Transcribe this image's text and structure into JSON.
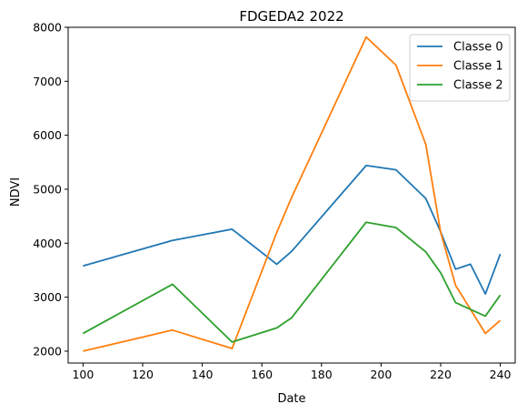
{
  "chart_data": {
    "type": "line",
    "title": "FDGEDA2 2022",
    "xlabel": "Date",
    "ylabel": "NDVI",
    "xlim": [
      95,
      245
    ],
    "ylim": [
      1780,
      8000
    ],
    "xticks": [
      100,
      120,
      140,
      160,
      180,
      200,
      220,
      240
    ],
    "yticks": [
      2000,
      3000,
      4000,
      5000,
      6000,
      7000,
      8000
    ],
    "grid": false,
    "legend_position": "top-right",
    "series": [
      {
        "name": "Classe 0",
        "color": "#1f77b4",
        "x": [
          100,
          130,
          150,
          165,
          170,
          195,
          205,
          215,
          220,
          225,
          230,
          235,
          240
        ],
        "y": [
          3580,
          4050,
          4260,
          3610,
          3850,
          5440,
          5360,
          4830,
          4210,
          3520,
          3610,
          3060,
          3800
        ]
      },
      {
        "name": "Classe 1",
        "color": "#ff7f0e",
        "x": [
          100,
          130,
          150,
          165,
          170,
          195,
          205,
          215,
          220,
          225,
          235,
          240
        ],
        "y": [
          2000,
          2390,
          2050,
          4200,
          4850,
          7820,
          7300,
          5830,
          4200,
          3220,
          2330,
          2570
        ]
      },
      {
        "name": "Classe 2",
        "color": "#2ca02c",
        "x": [
          100,
          130,
          150,
          165,
          170,
          195,
          205,
          215,
          220,
          225,
          235,
          240
        ],
        "y": [
          2330,
          3240,
          2170,
          2430,
          2620,
          4390,
          4290,
          3840,
          3450,
          2900,
          2650,
          3040
        ]
      }
    ]
  }
}
